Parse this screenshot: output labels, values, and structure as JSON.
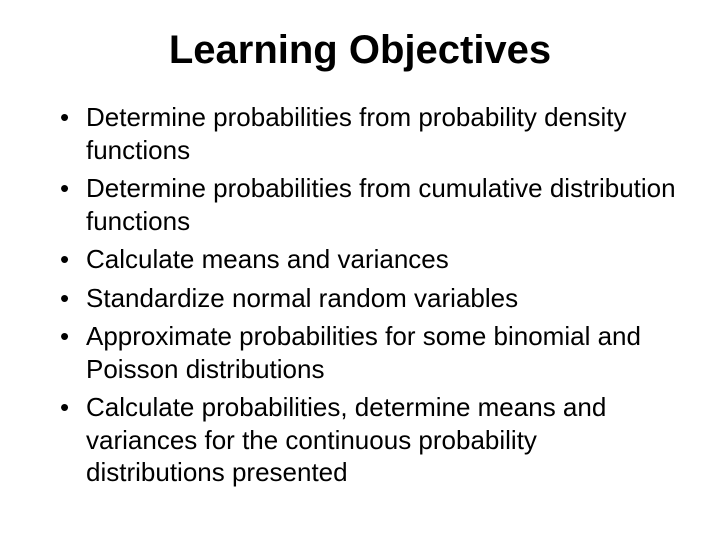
{
  "slide": {
    "title": "Learning Objectives",
    "title_fontsize": 40,
    "title_fontweight": "bold",
    "body_fontsize": 26,
    "background_color": "#ffffff",
    "text_color": "#000000",
    "font_family": "Arial",
    "bullets": [
      "Determine probabilities from probability density functions",
      "Determine probabilities from cumulative distribution functions",
      "Calculate means and variances",
      "Standardize normal random variables",
      "Approximate probabilities for some binomial and Poisson distributions",
      "Calculate probabilities, determine means and variances for the continuous probability distributions presented"
    ]
  }
}
